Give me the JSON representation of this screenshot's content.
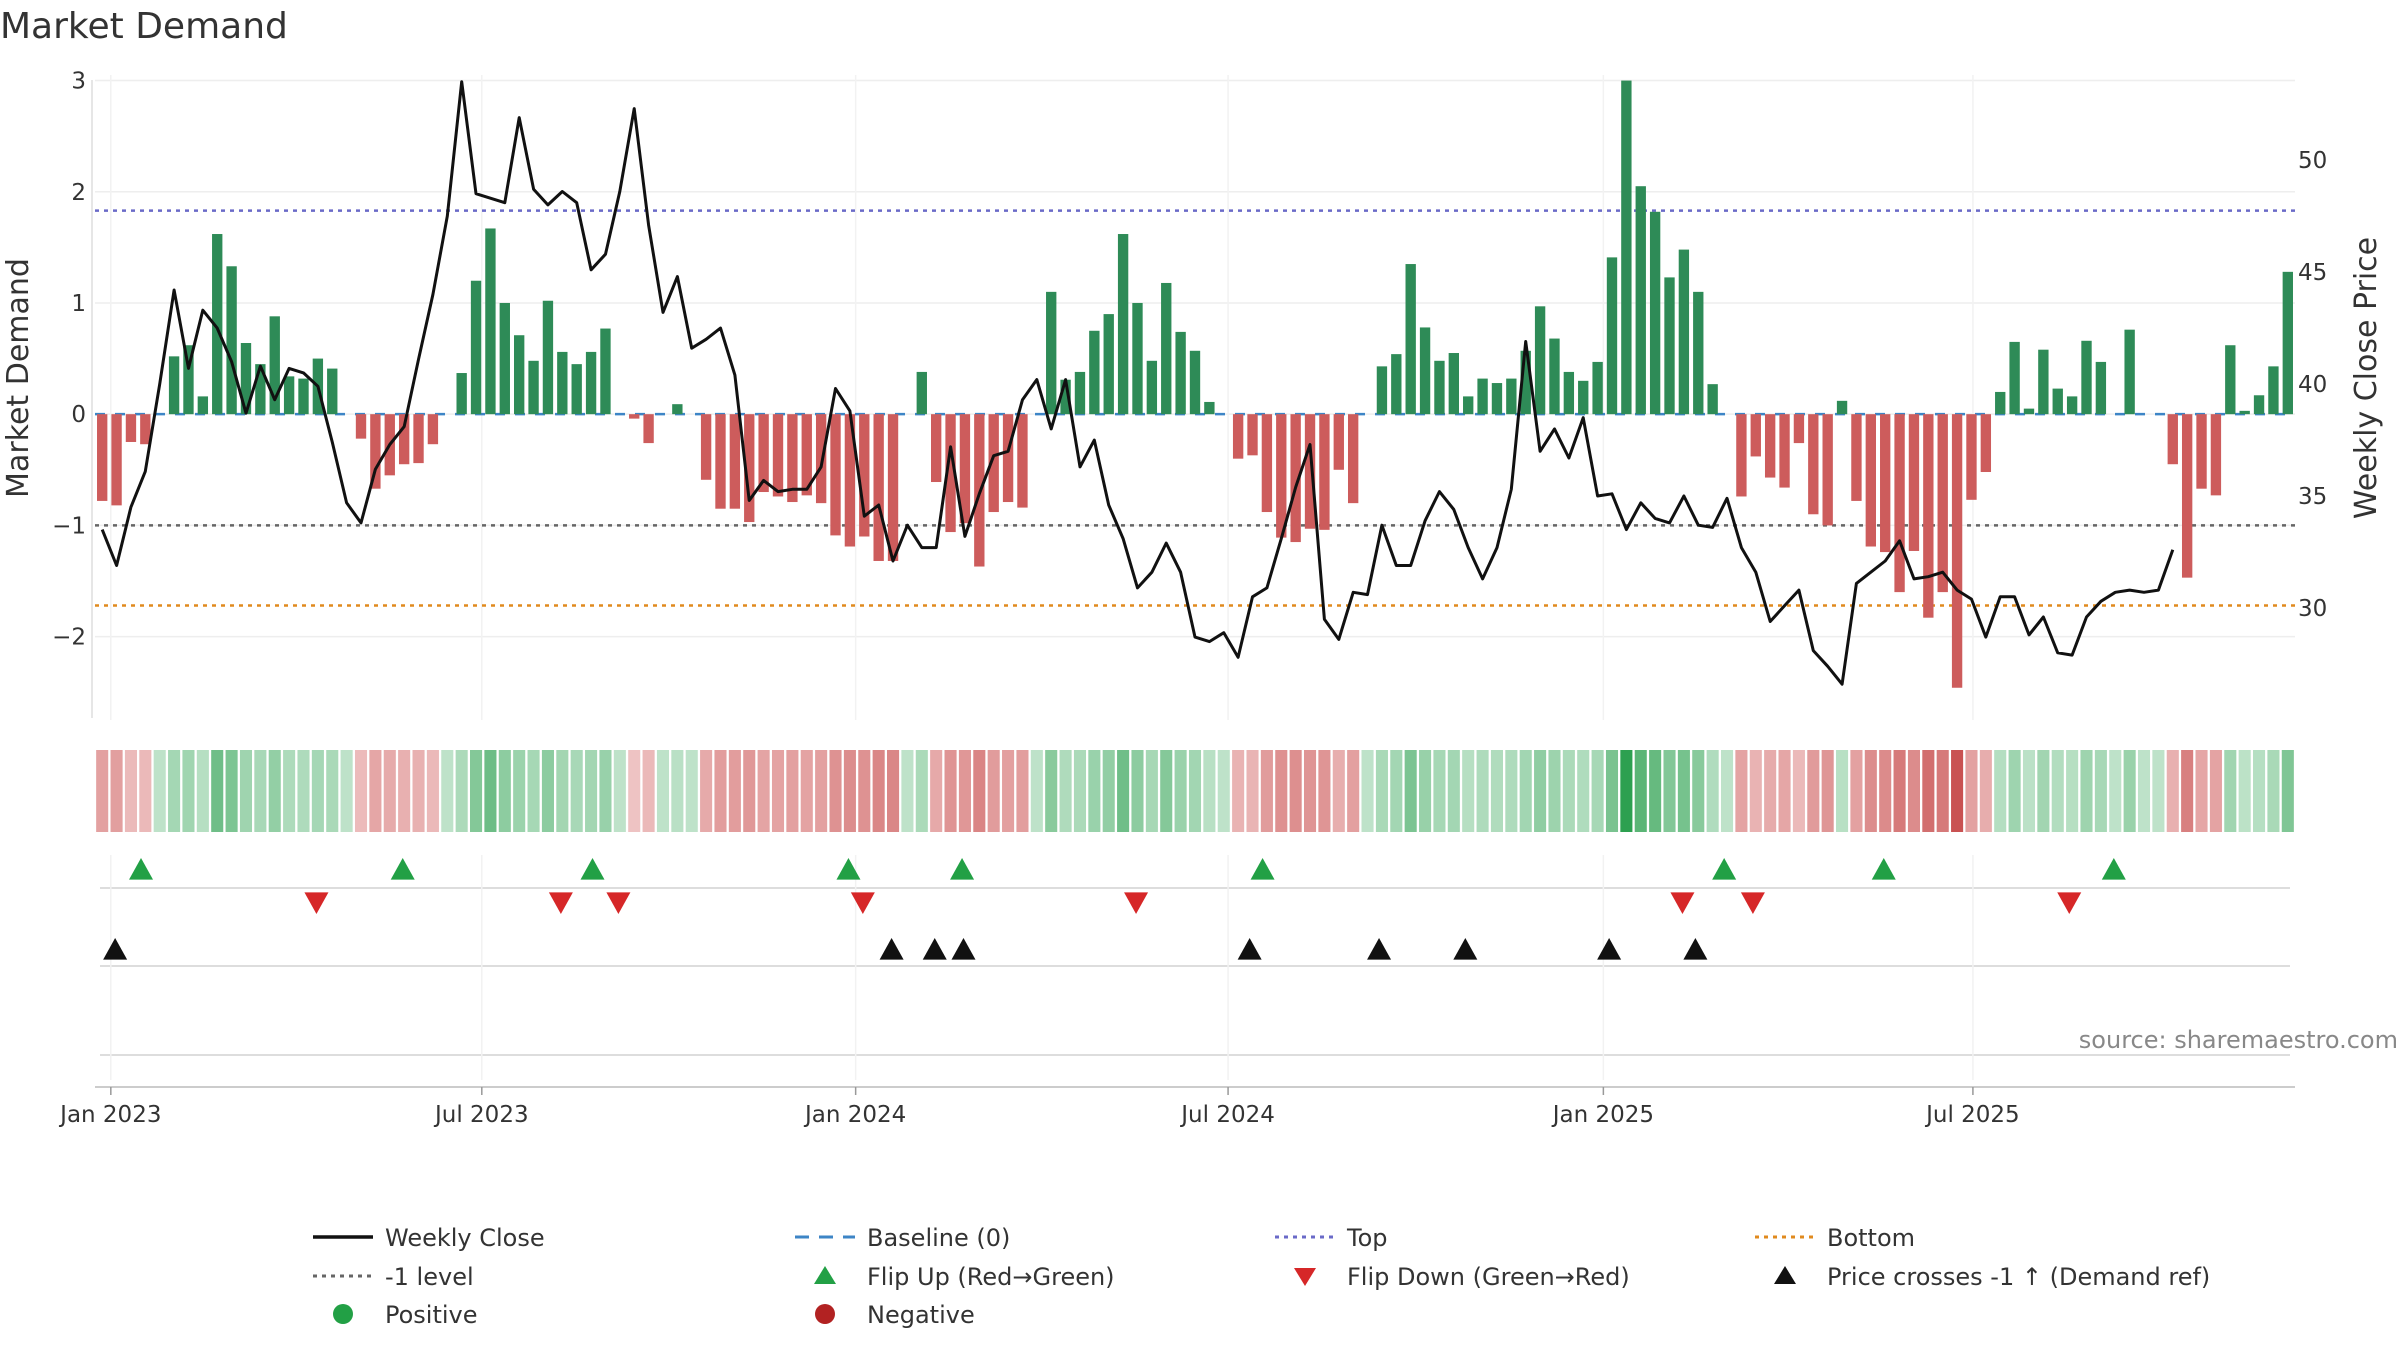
{
  "chart_data": {
    "type": "bar+line",
    "title": "Market Demand",
    "ylabel_left": "Market Demand",
    "ylabel_right": "Weekly Close Price",
    "ylim_left": [
      -2.75,
      3.05
    ],
    "ylim_right": [
      25.0,
      53.8
    ],
    "y_ticks_left": [
      3,
      2,
      1,
      0,
      -1,
      -2
    ],
    "y_ticks_left_labels": [
      "3",
      "2",
      "1",
      "0",
      "−1",
      "−2"
    ],
    "y_ticks_right": [
      50,
      45,
      40,
      35,
      30
    ],
    "x_tick_labels": [
      "Jan 2023",
      "Jul 2023",
      "Jan 2024",
      "Jul 2024",
      "Jan 2025",
      "Jul 2025"
    ],
    "x_tick_weeks": [
      0.6,
      26.4,
      52.4,
      78.3,
      104.4,
      130.1
    ],
    "top_level": 1.83,
    "bottom_level": -1.72,
    "minus_one_level": -1.0,
    "demand": [
      -0.78,
      -0.82,
      -0.25,
      -0.27,
      0.0,
      0.52,
      0.62,
      0.16,
      1.62,
      1.33,
      0.64,
      0.45,
      0.88,
      0.34,
      0.32,
      0.5,
      0.41,
      0.0,
      -0.22,
      -0.67,
      -0.55,
      -0.45,
      -0.44,
      -0.27,
      0.0,
      0.37,
      1.2,
      1.67,
      1.0,
      0.71,
      0.48,
      1.02,
      0.56,
      0.45,
      0.56,
      0.77,
      0.0,
      -0.04,
      -0.26,
      0.0,
      0.09,
      0.0,
      -0.59,
      -0.85,
      -0.85,
      -0.97,
      -0.7,
      -0.74,
      -0.79,
      -0.73,
      -0.8,
      -1.09,
      -1.19,
      -1.1,
      -1.32,
      -1.32,
      0.0,
      0.38,
      -0.61,
      -1.06,
      -0.98,
      -1.37,
      -0.88,
      -0.79,
      -0.84,
      0.0,
      1.1,
      0.31,
      0.38,
      0.75,
      0.9,
      1.62,
      1.0,
      0.48,
      1.18,
      0.74,
      0.57,
      0.11,
      0.0,
      -0.4,
      -0.37,
      -0.88,
      -1.11,
      -1.15,
      -1.03,
      -1.04,
      -0.5,
      -0.8,
      0.0,
      0.43,
      0.54,
      1.35,
      0.78,
      0.48,
      0.55,
      0.16,
      0.32,
      0.28,
      0.32,
      0.57,
      0.97,
      0.68,
      0.38,
      0.3,
      0.47,
      1.41,
      3.0,
      2.05,
      1.82,
      1.23,
      1.48,
      1.1,
      0.27,
      0.0,
      -0.74,
      -0.38,
      -0.57,
      -0.66,
      -0.26,
      -0.9,
      -1.0,
      0.12,
      -0.78,
      -1.19,
      -1.24,
      -1.6,
      -1.23,
      -1.83,
      -1.6,
      -2.46,
      -0.77,
      -0.52,
      0.2,
      0.65,
      0.05,
      0.58,
      0.23,
      0.16,
      0.66,
      0.47,
      0.0,
      0.76,
      0.0,
      0.0,
      -0.45,
      -1.47,
      -0.67,
      -0.73,
      0.62,
      0.03,
      0.17,
      0.43,
      1.28
    ],
    "weekly_close": [
      33.5,
      31.9,
      34.5,
      36.1,
      40.0,
      44.2,
      40.7,
      43.3,
      42.5,
      41.0,
      38.7,
      40.8,
      39.3,
      40.7,
      40.5,
      39.9,
      37.4,
      34.7,
      33.8,
      36.2,
      37.3,
      38.1,
      41.1,
      44.0,
      47.5,
      53.5,
      48.5,
      48.3,
      48.1,
      51.9,
      48.7,
      48.0,
      48.6,
      48.1,
      45.1,
      45.8,
      48.6,
      52.3,
      47.1,
      43.2,
      44.8,
      41.6,
      42.0,
      42.5,
      40.4,
      34.8,
      35.7,
      35.2,
      35.3,
      35.3,
      36.3,
      39.8,
      38.8,
      34.1,
      34.6,
      32.1,
      33.7,
      32.7,
      32.7,
      37.2,
      33.2,
      35.1,
      36.8,
      37.0,
      39.3,
      40.2,
      38.0,
      40.2,
      36.3,
      37.5,
      34.6,
      33.1,
      30.9,
      31.6,
      32.9,
      31.6,
      28.7,
      28.5,
      28.9,
      27.8,
      30.5,
      30.9,
      33.1,
      35.4,
      37.3,
      29.5,
      28.6,
      30.7,
      30.6,
      33.7,
      31.9,
      31.9,
      33.9,
      35.2,
      34.4,
      32.7,
      31.3,
      32.7,
      35.3,
      41.9,
      37.0,
      38.0,
      36.7,
      38.5,
      35.0,
      35.1,
      33.5,
      34.7,
      34.0,
      33.8,
      35.0,
      33.7,
      33.6,
      34.9,
      32.7,
      31.6,
      29.4,
      30.1,
      30.8,
      28.1,
      27.4,
      26.6,
      31.1,
      31.6,
      32.1,
      33.0,
      31.3,
      31.4,
      31.6,
      30.8,
      30.4,
      28.7,
      30.5,
      30.5,
      28.8,
      29.6,
      28.0,
      27.9,
      29.6,
      30.3,
      30.7,
      30.8,
      30.7,
      30.8,
      32.6
    ],
    "baseline_label": "Baseline (0)",
    "flip_up_weeks": [
      2.7,
      20.9,
      34.1,
      51.9,
      59.8,
      80.7,
      112.8,
      123.9,
      139.9
    ],
    "flip_down_weeks": [
      14.9,
      31.9,
      35.9,
      52.9,
      71.9,
      109.9,
      114.8,
      136.8
    ],
    "price_cross_weeks": [
      0.9,
      54.9,
      57.9,
      59.9,
      79.8,
      88.8,
      94.8,
      104.8,
      110.8
    ],
    "source_text": "source: sharemaestro.com",
    "legend": [
      {
        "label": "Weekly Close",
        "kind": "line",
        "color": "#111111"
      },
      {
        "label": "Baseline (0)",
        "kind": "dash",
        "color": "#3d85c6"
      },
      {
        "label": "Top",
        "kind": "dot",
        "color": "#6a6ac8"
      },
      {
        "label": "Bottom",
        "kind": "dot",
        "color": "#e08a1e"
      },
      {
        "label": "-1 level",
        "kind": "dot",
        "color": "#666666"
      },
      {
        "label": "Flip Up (Red→Green)",
        "kind": "tri-up",
        "color": "#22a045"
      },
      {
        "label": "Flip Down (Green→Red)",
        "kind": "tri-down",
        "color": "#d62728"
      },
      {
        "label": "Price crosses -1 ↑ (Demand ref)",
        "kind": "tri-up",
        "color": "#111111"
      },
      {
        "label": "Positive",
        "kind": "circle",
        "color": "#22a045"
      },
      {
        "label": "Negative",
        "kind": "circle",
        "color": "#b22222"
      }
    ],
    "colors": {
      "positive_bar": "#2e8b57",
      "negative_bar": "#cd5c5c",
      "line": "#111111",
      "baseline": "#3d85c6",
      "top": "#6a6ac8",
      "bottom": "#e08a1e",
      "minus_one": "#666666"
    }
  }
}
